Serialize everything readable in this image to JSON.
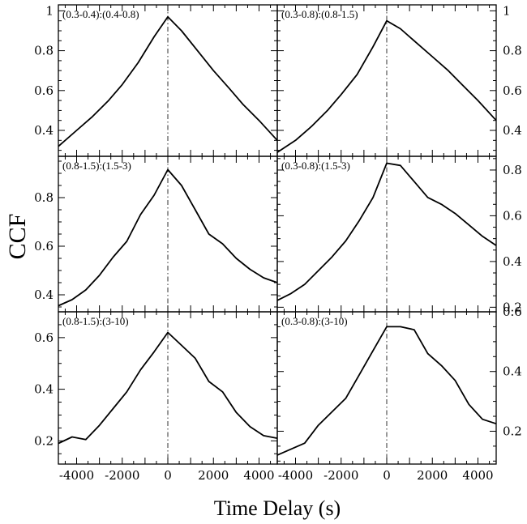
{
  "chart_data": {
    "type": "line",
    "layout": "3 rows x 2 columns, shared x axis",
    "ylabel": "CCF",
    "xlabel": "Time Delay (s)",
    "xlim": [
      -4800,
      4800
    ],
    "xticks": [
      -4000,
      -2000,
      0,
      2000,
      4000
    ],
    "xtick_labels": [
      "-4000",
      "-2000",
      "0",
      "2000",
      "4000"
    ],
    "zero_line_style": "dash-dot vertical line at 0",
    "panels": [
      {
        "label": "(0.3-0.4):(0.4-0.8)",
        "ylim": [
          0.27,
          1.03
        ],
        "yticks": [
          0.4,
          0.6,
          0.8,
          1.0
        ],
        "ytick_labels": [
          "0.4",
          "0.6",
          "0.8",
          "1"
        ],
        "x": [
          -4800,
          -4000,
          -3300,
          -2600,
          -2000,
          -1300,
          -600,
          0,
          600,
          1300,
          2000,
          2700,
          3300,
          4000,
          4800
        ],
        "values": [
          0.32,
          0.4,
          0.47,
          0.55,
          0.63,
          0.74,
          0.87,
          0.97,
          0.9,
          0.8,
          0.7,
          0.61,
          0.53,
          0.45,
          0.35
        ]
      },
      {
        "label": "(0.3-0.8):(0.8-1.5)",
        "ylim": [
          0.27,
          1.03
        ],
        "yticks": [
          0.4,
          0.6,
          0.8,
          1.0
        ],
        "ytick_labels": [
          "0.4",
          "0.6",
          "0.8",
          "1"
        ],
        "x": [
          -4800,
          -4000,
          -3300,
          -2600,
          -2000,
          -1300,
          -600,
          0,
          600,
          1300,
          2000,
          2700,
          3300,
          4000,
          4800
        ],
        "values": [
          0.29,
          0.35,
          0.42,
          0.5,
          0.58,
          0.68,
          0.82,
          0.95,
          0.91,
          0.84,
          0.77,
          0.7,
          0.63,
          0.55,
          0.45
        ]
      },
      {
        "label": "(0.8-1.5):(1.5-3)",
        "ylim": [
          0.33,
          0.97
        ],
        "yticks": [
          0.4,
          0.6,
          0.8
        ],
        "ytick_labels": [
          "0.4",
          "0.6",
          "0.8"
        ],
        "x": [
          -4800,
          -4200,
          -3600,
          -3000,
          -2400,
          -1800,
          -1200,
          -600,
          0,
          600,
          1200,
          1800,
          2400,
          3000,
          3600,
          4200,
          4800
        ],
        "values": [
          0.355,
          0.38,
          0.42,
          0.48,
          0.555,
          0.62,
          0.73,
          0.81,
          0.915,
          0.85,
          0.75,
          0.65,
          0.61,
          0.55,
          0.505,
          0.47,
          0.45
        ]
      },
      {
        "label": "(0.3-0.8):(1.5-3)",
        "ylim": [
          0.18,
          0.86
        ],
        "yticks": [
          0.2,
          0.4,
          0.6,
          0.8
        ],
        "ytick_labels": [
          "0.2",
          "0.4",
          "0.6",
          "0.8"
        ],
        "x": [
          -4800,
          -4200,
          -3600,
          -3000,
          -2400,
          -1800,
          -1200,
          -600,
          0,
          600,
          1200,
          1800,
          2400,
          3000,
          3600,
          4200,
          4800
        ],
        "values": [
          0.23,
          0.26,
          0.3,
          0.36,
          0.42,
          0.49,
          0.58,
          0.68,
          0.83,
          0.82,
          0.75,
          0.68,
          0.65,
          0.61,
          0.56,
          0.51,
          0.47
        ]
      },
      {
        "label": "(0.8-1.5):(3-10)",
        "ylim": [
          0.11,
          0.7
        ],
        "yticks": [
          0.2,
          0.4,
          0.6
        ],
        "ytick_labels": [
          "0.2",
          "0.4",
          "0.6"
        ],
        "x": [
          -4800,
          -4200,
          -3600,
          -3000,
          -2400,
          -1800,
          -1200,
          -600,
          0,
          600,
          1200,
          1800,
          2400,
          3000,
          3600,
          4200,
          4800
        ],
        "values": [
          0.19,
          0.215,
          0.205,
          0.26,
          0.325,
          0.39,
          0.475,
          0.545,
          0.62,
          0.57,
          0.52,
          0.43,
          0.39,
          0.31,
          0.255,
          0.22,
          0.21
        ]
      },
      {
        "label": "(0.3-0.8):(3-10)",
        "ylim": [
          0.09,
          0.6
        ],
        "yticks": [
          0.2,
          0.4,
          0.6
        ],
        "ytick_labels": [
          "0.2",
          "0.4",
          "0.6"
        ],
        "x": [
          -4800,
          -4200,
          -3600,
          -3000,
          -2400,
          -1800,
          -1200,
          -600,
          0,
          600,
          1200,
          1800,
          2400,
          3000,
          3600,
          4200,
          4800
        ],
        "values": [
          0.12,
          0.14,
          0.16,
          0.22,
          0.265,
          0.31,
          0.39,
          0.47,
          0.55,
          0.55,
          0.54,
          0.46,
          0.42,
          0.37,
          0.29,
          0.24,
          0.225
        ]
      }
    ]
  }
}
